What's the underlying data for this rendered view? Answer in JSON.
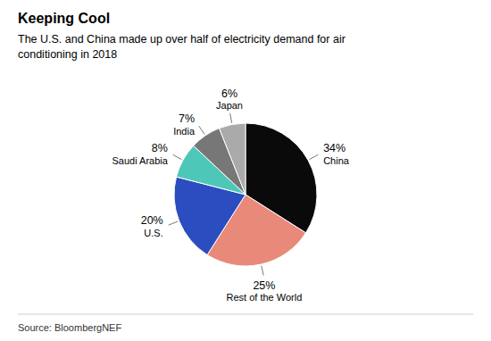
{
  "chart_data": {
    "type": "pie",
    "title": "Keeping Cool",
    "subtitle": "The U.S. and China made up over half of electricity demand for air\nconditioning in 2018",
    "source": "Source: BloombergNEF",
    "categories": [
      "China",
      "Rest of the World",
      "U.S.",
      "Saudi Arabia",
      "India",
      "Japan"
    ],
    "values": [
      34,
      25,
      20,
      8,
      7,
      6
    ],
    "value_labels": [
      "34%",
      "25%",
      "20%",
      "8%",
      "7%",
      "6%"
    ],
    "colors": [
      "#0a0a0a",
      "#E8897A",
      "#2B4DBF",
      "#4DC8B8",
      "#777777",
      "#AAAAAA"
    ],
    "data_labels": true
  }
}
